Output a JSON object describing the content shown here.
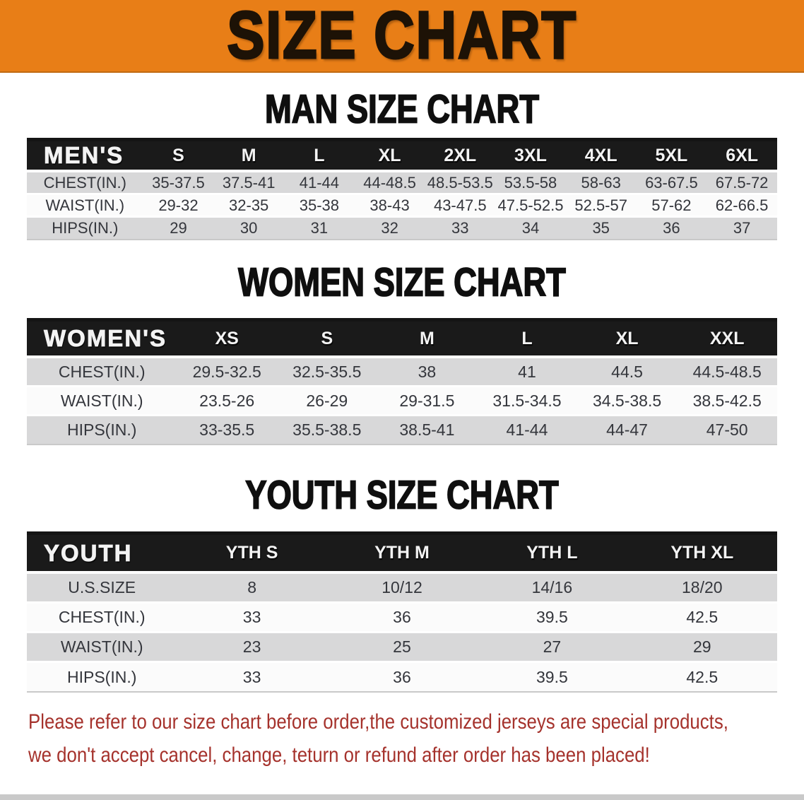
{
  "banner": {
    "title": "SIZE CHART"
  },
  "sections": [
    {
      "id": "men",
      "heading": "MAN SIZE CHART",
      "table": {
        "title": "MEN'S",
        "sizes": [
          "S",
          "M",
          "L",
          "XL",
          "2XL",
          "3XL",
          "4XL",
          "5XL",
          "6XL"
        ],
        "rows": [
          {
            "label": "CHEST(IN.)",
            "values": [
              "35-37.5",
              "37.5-41",
              "41-44",
              "44-48.5",
              "48.5-53.5",
              "53.5-58",
              "58-63",
              "63-67.5",
              "67.5-72"
            ]
          },
          {
            "label": "WAIST(IN.)",
            "values": [
              "29-32",
              "32-35",
              "35-38",
              "38-43",
              "43-47.5",
              "47.5-52.5",
              "52.5-57",
              "57-62",
              "62-66.5"
            ]
          },
          {
            "label": "HIPS(IN.)",
            "values": [
              "29",
              "30",
              "31",
              "32",
              "33",
              "34",
              "35",
              "36",
              "37"
            ]
          }
        ]
      }
    },
    {
      "id": "women",
      "heading": "WOMEN SIZE CHART",
      "table": {
        "title": "WOMEN'S",
        "sizes": [
          "XS",
          "S",
          "M",
          "L",
          "XL",
          "XXL"
        ],
        "rows": [
          {
            "label": "CHEST(IN.)",
            "values": [
              "29.5-32.5",
              "32.5-35.5",
              "38",
              "41",
              "44.5",
              "44.5-48.5"
            ]
          },
          {
            "label": "WAIST(IN.)",
            "values": [
              "23.5-26",
              "26-29",
              "29-31.5",
              "31.5-34.5",
              "34.5-38.5",
              "38.5-42.5"
            ]
          },
          {
            "label": "HIPS(IN.)",
            "values": [
              "33-35.5",
              "35.5-38.5",
              "38.5-41",
              "41-44",
              "44-47",
              "47-50"
            ]
          }
        ]
      }
    },
    {
      "id": "youth",
      "heading": "YOUTH SIZE CHART",
      "table": {
        "title": "YOUTH",
        "sizes": [
          "YTH S",
          "YTH M",
          "YTH L",
          "YTH XL"
        ],
        "rows": [
          {
            "label": "U.S.SIZE",
            "values": [
              "8",
              "10/12",
              "14/16",
              "18/20"
            ]
          },
          {
            "label": "CHEST(IN.)",
            "values": [
              "33",
              "36",
              "39.5",
              "42.5"
            ]
          },
          {
            "label": "WAIST(IN.)",
            "values": [
              "23",
              "25",
              "27",
              "29"
            ]
          },
          {
            "label": "HIPS(IN.)",
            "values": [
              "33",
              "36",
              "39.5",
              "42.5"
            ]
          }
        ]
      }
    }
  ],
  "disclaimer": {
    "lines": [
      "Please refer to our size chart before order,the customized jerseys are special products,",
      "we don't accept cancel, change, teturn or refund after order has been placed!"
    ]
  },
  "colors": {
    "banner_bg": "#E87E17",
    "header_bg": "#1A1A1A",
    "stripe_gray": "#D8D8D9",
    "row_white": "#FBFBFB",
    "disclaimer_red": "#A5322C"
  }
}
